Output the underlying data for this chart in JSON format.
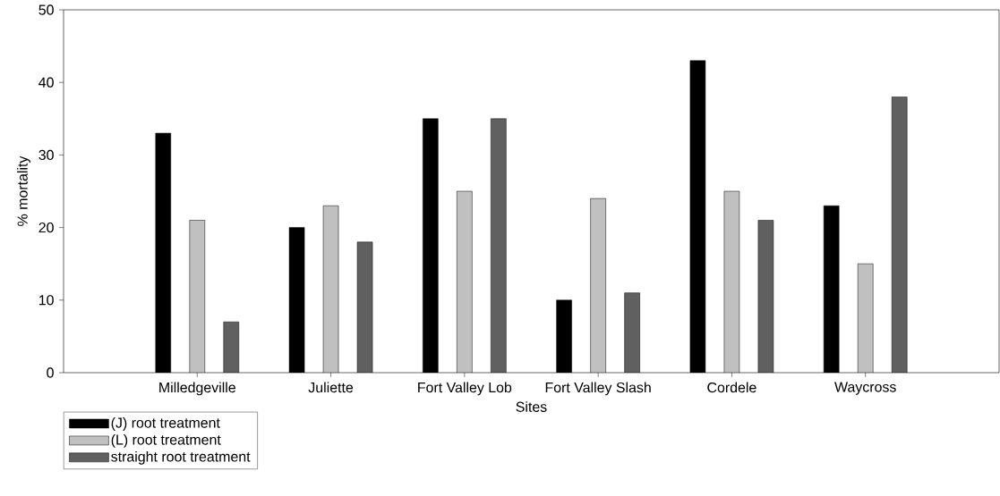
{
  "chart_data": {
    "type": "bar",
    "xlabel": "Sites",
    "ylabel": "% mortality",
    "categories": [
      "Milledgeville",
      "Juliette",
      "Fort Valley Lob",
      "Fort Valley Slash",
      "Cordele",
      "Waycross"
    ],
    "series": [
      {
        "name": "(J) root treatment",
        "color": "#000000",
        "values": [
          33,
          20,
          35,
          10,
          43,
          23
        ]
      },
      {
        "name": "(L) root treatment",
        "color": "#c0c0c0",
        "values": [
          21,
          23,
          25,
          24,
          25,
          15
        ]
      },
      {
        "name": "straight root treatment",
        "color": "#606060",
        "values": [
          7,
          18,
          35,
          11,
          21,
          38
        ]
      }
    ],
    "ylim": [
      0,
      50
    ],
    "yticks": [
      0,
      10,
      20,
      30,
      40,
      50
    ],
    "grid": false,
    "legend": "bottom left"
  }
}
